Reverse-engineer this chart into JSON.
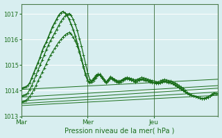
{
  "bg_color": "#d8eef0",
  "grid_color": "#ffffff",
  "line_color": "#1a6e1a",
  "title": "Pression niveau de la mer( hPa )",
  "xlim": [
    0,
    95
  ],
  "ylim": [
    1013.0,
    1017.4
  ],
  "yticks": [
    1013,
    1014,
    1015,
    1016,
    1017
  ],
  "xtick_positions": [
    0,
    32,
    64
  ],
  "xtick_labels": [
    "Mar",
    "Mer",
    "Jeu"
  ],
  "vlines": [
    0,
    32,
    64
  ],
  "peaked_lines": [
    {
      "y": [
        1014.1,
        1014.12,
        1014.15,
        1014.2,
        1014.3,
        1014.5,
        1014.7,
        1014.9,
        1015.1,
        1015.3,
        1015.55,
        1015.75,
        1015.9,
        1016.1,
        1016.3,
        1016.5,
        1016.65,
        1016.8,
        1016.95,
        1017.05,
        1017.1,
        1017.05,
        1016.95,
        1016.8,
        1016.6,
        1016.4,
        1016.15,
        1015.85,
        1015.55,
        1015.25,
        1014.95,
        1014.65,
        1014.4,
        1014.3,
        1014.35,
        1014.45,
        1014.55,
        1014.65,
        1014.6,
        1014.5,
        1014.4,
        1014.3,
        1014.4,
        1014.5,
        1014.45,
        1014.4,
        1014.35,
        1014.32,
        1014.35,
        1014.4,
        1014.45,
        1014.48,
        1014.45,
        1014.42,
        1014.38,
        1014.35,
        1014.38,
        1014.42,
        1014.45,
        1014.43,
        1014.4,
        1014.38,
        1014.35,
        1014.32,
        1014.3,
        1014.28,
        1014.28,
        1014.3,
        1014.35,
        1014.37,
        1014.35,
        1014.32,
        1014.3,
        1014.27,
        1014.23,
        1014.18,
        1014.13,
        1014.08,
        1014.02,
        1013.95,
        1013.9,
        1013.85,
        1013.82,
        1013.8,
        1013.78,
        1013.75,
        1013.72,
        1013.7,
        1013.7,
        1013.72,
        1013.75,
        1013.8,
        1013.85,
        1013.9,
        1013.88,
        1013.87
      ],
      "markers": true,
      "linewidth": 1.2,
      "markersize": 3.0
    },
    {
      "y": [
        1013.8,
        1013.82,
        1013.85,
        1013.9,
        1014.05,
        1014.2,
        1014.4,
        1014.6,
        1014.8,
        1015.0,
        1015.2,
        1015.4,
        1015.6,
        1015.78,
        1015.95,
        1016.1,
        1016.25,
        1016.4,
        1016.55,
        1016.7,
        1016.82,
        1016.92,
        1016.98,
        1017.02,
        1016.95,
        1016.8,
        1016.6,
        1016.35,
        1016.05,
        1015.75,
        1015.4,
        1015.05,
        1014.7,
        1014.45,
        1014.35,
        1014.4,
        1014.5,
        1014.6,
        1014.65,
        1014.55,
        1014.45,
        1014.35,
        1014.45,
        1014.55,
        1014.5,
        1014.45,
        1014.4,
        1014.38,
        1014.4,
        1014.45,
        1014.5,
        1014.52,
        1014.5,
        1014.48,
        1014.45,
        1014.42,
        1014.45,
        1014.48,
        1014.52,
        1014.5,
        1014.48,
        1014.45,
        1014.42,
        1014.4,
        1014.38,
        1014.35,
        1014.35,
        1014.38,
        1014.42,
        1014.44,
        1014.42,
        1014.4,
        1014.38,
        1014.35,
        1014.3,
        1014.25,
        1014.2,
        1014.15,
        1014.1,
        1014.0,
        1013.92,
        1013.87,
        1013.83,
        1013.8,
        1013.78,
        1013.75,
        1013.72,
        1013.7,
        1013.7,
        1013.72,
        1013.75,
        1013.8,
        1013.85,
        1013.9,
        1013.88,
        1013.87
      ],
      "markers": true,
      "linewidth": 0.9,
      "markersize": 2.5
    },
    {
      "y": [
        1013.55,
        1013.58,
        1013.62,
        1013.68,
        1013.78,
        1013.9,
        1014.05,
        1014.2,
        1014.38,
        1014.55,
        1014.72,
        1014.88,
        1015.05,
        1015.22,
        1015.38,
        1015.52,
        1015.65,
        1015.78,
        1015.9,
        1016.0,
        1016.1,
        1016.18,
        1016.24,
        1016.28,
        1016.22,
        1016.1,
        1015.95,
        1015.75,
        1015.5,
        1015.2,
        1014.9,
        1014.6,
        1014.4,
        1014.35,
        1014.4,
        1014.5,
        1014.6,
        1014.65,
        1014.6,
        1014.5,
        1014.4,
        1014.35,
        1014.42,
        1014.5,
        1014.48,
        1014.42,
        1014.38,
        1014.35,
        1014.38,
        1014.42,
        1014.46,
        1014.48,
        1014.46,
        1014.42,
        1014.38,
        1014.35,
        1014.38,
        1014.42,
        1014.46,
        1014.44,
        1014.42,
        1014.4,
        1014.38,
        1014.35,
        1014.32,
        1014.3,
        1014.3,
        1014.32,
        1014.36,
        1014.38,
        1014.36,
        1014.33,
        1014.3,
        1014.27,
        1014.23,
        1014.18,
        1014.13,
        1014.08,
        1014.02,
        1013.95,
        1013.9,
        1013.85,
        1013.82,
        1013.8,
        1013.78,
        1013.75,
        1013.72,
        1013.7,
        1013.7,
        1013.72,
        1013.75,
        1013.8,
        1013.85,
        1013.9,
        1013.88,
        1013.87
      ],
      "markers": true,
      "linewidth": 0.8,
      "markersize": 2.5
    }
  ],
  "slope_lines": [
    {
      "x0": 0,
      "y0": 1014.05,
      "x1": 95,
      "y1": 1014.45
    },
    {
      "x0": 0,
      "y0": 1013.75,
      "x1": 95,
      "y1": 1014.2
    },
    {
      "x0": 0,
      "y0": 1013.6,
      "x1": 95,
      "y1": 1014.1
    },
    {
      "x0": 0,
      "y0": 1013.5,
      "x1": 95,
      "y1": 1013.95
    },
    {
      "x0": 0,
      "y0": 1013.42,
      "x1": 95,
      "y1": 1013.82
    }
  ]
}
